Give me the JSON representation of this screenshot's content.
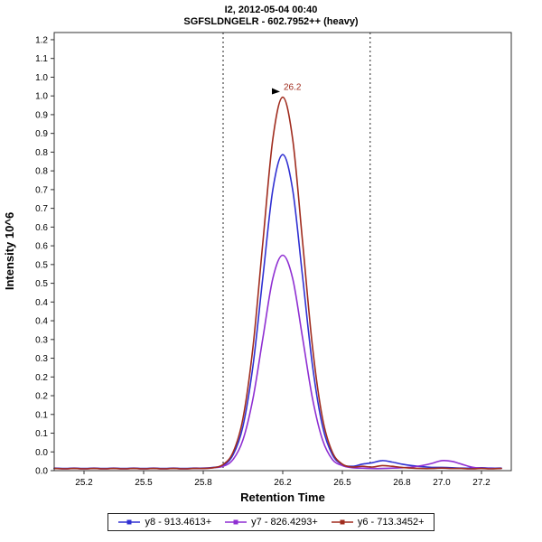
{
  "titles": {
    "line1": "I2, 2012-05-04 00:40",
    "line2": "SGFSLDNGELR - 602.7952++ (heavy)"
  },
  "axes": {
    "x_label": "Retention Time",
    "y_label": "Intensity 10^6",
    "x_ticks": [
      {
        "v": 25.2,
        "label": "25.2"
      },
      {
        "v": 25.5,
        "label": "25.5"
      },
      {
        "v": 25.8,
        "label": "25.8"
      },
      {
        "v": 26.2,
        "label": "26.2"
      },
      {
        "v": 26.5,
        "label": "26.5"
      },
      {
        "v": 26.8,
        "label": "26.8"
      },
      {
        "v": 27.0,
        "label": "27.0"
      },
      {
        "v": 27.2,
        "label": "27.2"
      }
    ],
    "y_tick_labels": [
      "1.2",
      "1.1",
      "1.0",
      "1.0",
      "0.9",
      "0.9",
      "0.8",
      "0.8",
      "0.7",
      "0.7",
      "0.6",
      "0.6",
      "0.5",
      "0.5",
      "0.4",
      "0.4",
      "0.3",
      "0.3",
      "0.2",
      "0.2",
      "0.1",
      "0.1",
      "0.0",
      "0.0"
    ],
    "y_tick_top_value": 1.2,
    "y_tick_bottom_value": 0.0
  },
  "chart_data": {
    "type": "line",
    "title": "I2, 2012-05-04 00:40 — SGFSLDNGELR - 602.7952++ (heavy)",
    "xlabel": "Retention Time",
    "ylabel": "Intensity 10^6",
    "xlim": [
      25.05,
      27.35
    ],
    "ylim": [
      0,
      1.22
    ],
    "grid": false,
    "legend_position": "bottom",
    "boundaries": [
      25.9,
      26.64
    ],
    "annotation": {
      "text": "26.2",
      "rt": 26.2,
      "intensity": 1.04,
      "color": "#a02c1e",
      "arrow_color": "#000000"
    },
    "x": [
      25.05,
      25.1,
      25.15,
      25.2,
      25.25,
      25.3,
      25.35,
      25.4,
      25.45,
      25.5,
      25.55,
      25.6,
      25.65,
      25.7,
      25.75,
      25.8,
      25.85,
      25.9,
      25.95,
      26.0,
      26.05,
      26.1,
      26.15,
      26.2,
      26.25,
      26.3,
      26.35,
      26.4,
      26.45,
      26.5,
      26.55,
      26.6,
      26.65,
      26.7,
      26.75,
      26.8,
      26.85,
      26.9,
      26.95,
      27.0,
      27.05,
      27.1,
      27.15,
      27.2,
      27.25,
      27.3
    ],
    "series": [
      {
        "name": "y8 - 913.4613+",
        "color": "#3030d2",
        "peak_rt": 26.2,
        "peak_height": 0.88,
        "values": [
          0.007,
          0.006,
          0.007,
          0.006,
          0.007,
          0.006,
          0.007,
          0.006,
          0.007,
          0.006,
          0.007,
          0.006,
          0.007,
          0.006,
          0.007,
          0.007,
          0.009,
          0.015,
          0.044,
          0.124,
          0.291,
          0.539,
          0.782,
          0.88,
          0.782,
          0.539,
          0.291,
          0.124,
          0.044,
          0.017,
          0.012,
          0.018,
          0.022,
          0.028,
          0.024,
          0.018,
          0.014,
          0.011,
          0.009,
          0.009,
          0.008,
          0.007,
          0.007,
          0.008,
          0.007,
          0.007
        ]
      },
      {
        "name": "y7 - 826.4293+",
        "color": "#8f2fd2",
        "peak_rt": 26.2,
        "peak_height": 0.6,
        "values": [
          0.006,
          0.005,
          0.006,
          0.005,
          0.006,
          0.005,
          0.006,
          0.005,
          0.006,
          0.005,
          0.006,
          0.005,
          0.006,
          0.005,
          0.006,
          0.006,
          0.008,
          0.012,
          0.031,
          0.086,
          0.2,
          0.369,
          0.535,
          0.6,
          0.535,
          0.369,
          0.2,
          0.086,
          0.031,
          0.014,
          0.008,
          0.007,
          0.006,
          0.006,
          0.007,
          0.008,
          0.01,
          0.014,
          0.02,
          0.028,
          0.026,
          0.018,
          0.01,
          0.007,
          0.006,
          0.006
        ]
      },
      {
        "name": "y6 - 713.3452+",
        "color": "#a02c1e",
        "peak_rt": 26.2,
        "peak_height": 1.04,
        "values": [
          0.006,
          0.005,
          0.006,
          0.005,
          0.006,
          0.005,
          0.006,
          0.005,
          0.006,
          0.005,
          0.006,
          0.005,
          0.006,
          0.005,
          0.006,
          0.006,
          0.008,
          0.017,
          0.051,
          0.146,
          0.343,
          0.636,
          0.923,
          1.04,
          0.923,
          0.636,
          0.343,
          0.146,
          0.051,
          0.018,
          0.01,
          0.012,
          0.01,
          0.014,
          0.012,
          0.009,
          0.007,
          0.006,
          0.006,
          0.007,
          0.006,
          0.006,
          0.005,
          0.006,
          0.005,
          0.006
        ]
      }
    ]
  }
}
